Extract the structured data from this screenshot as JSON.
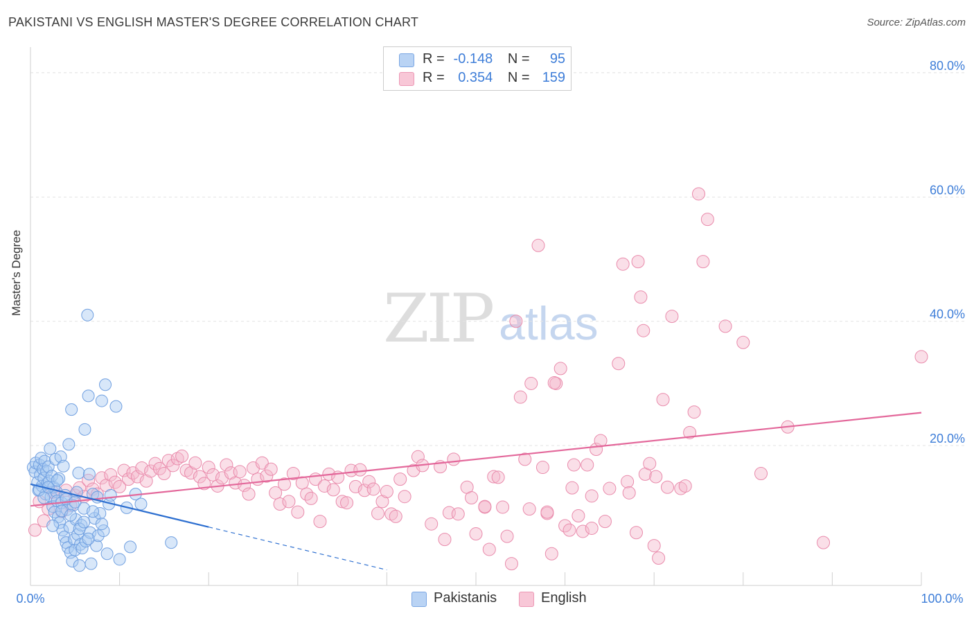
{
  "title": "PAKISTANI VS ENGLISH MASTER'S DEGREE CORRELATION CHART",
  "source": "Source: ZipAtlas.com",
  "watermark": {
    "zip": "ZIP",
    "atlas": "atlas"
  },
  "legend": [
    {
      "r_label": "R =",
      "r_value": "-0.148",
      "n_label": "N =",
      "n_value": "95"
    },
    {
      "r_label": "R =",
      "r_value": "0.354",
      "n_label": "N =",
      "n_value": "159"
    }
  ],
  "bottom_legend": {
    "pakistanis": "Pakistanis",
    "english": "English"
  },
  "colors": {
    "pakistanis_fill": "#a9c9f2",
    "pakistanis_stroke": "#6f9fe0",
    "pakistanis_line": "#2d6fd0",
    "english_fill": "#f5b8cc",
    "english_stroke": "#e98aab",
    "english_line": "#e3679a",
    "tick_label": "#3d7dd8"
  },
  "chart_data": {
    "type": "scatter",
    "title": "PAKISTANI VS ENGLISH MASTER'S DEGREE CORRELATION CHART",
    "xlabel": "",
    "ylabel": "Master's Degree",
    "xlim": [
      0,
      100
    ],
    "ylim": [
      -2.5,
      83
    ],
    "x_tick_labels": [
      "0.0%",
      "100.0%"
    ],
    "y_ticks": [
      20,
      40,
      60,
      80
    ],
    "y_tick_labels": [
      "20.0%",
      "40.0%",
      "60.0%",
      "80.0%"
    ],
    "grid": true,
    "legend_position": "top-center",
    "series": [
      {
        "name": "Pakistanis",
        "trend": {
          "x0": 0,
          "y0": 13.8,
          "x1": 20,
          "y1": 6.9,
          "dashed_to_x": 40
        },
        "points": [
          [
            0.3,
            16.5
          ],
          [
            0.5,
            15.8
          ],
          [
            0.6,
            17.2
          ],
          [
            0.8,
            14.1
          ],
          [
            0.9,
            12.8
          ],
          [
            1.0,
            16.9
          ],
          [
            1.1,
            15.3
          ],
          [
            1.2,
            18.0
          ],
          [
            1.3,
            13.5
          ],
          [
            1.4,
            16.2
          ],
          [
            1.5,
            14.8
          ],
          [
            1.6,
            17.5
          ],
          [
            1.7,
            12.2
          ],
          [
            1.8,
            15.9
          ],
          [
            1.9,
            13.9
          ],
          [
            2.0,
            16.6
          ],
          [
            2.1,
            14.3
          ],
          [
            2.2,
            19.5
          ],
          [
            2.3,
            11.8
          ],
          [
            2.4,
            15.1
          ],
          [
            2.5,
            10.2
          ],
          [
            2.6,
            13.3
          ],
          [
            2.7,
            9.3
          ],
          [
            2.8,
            17.8
          ],
          [
            2.9,
            12.6
          ],
          [
            3.0,
            11.1
          ],
          [
            3.1,
            8.5
          ],
          [
            3.2,
            14.7
          ],
          [
            3.3,
            7.6
          ],
          [
            3.4,
            18.2
          ],
          [
            3.5,
            10.8
          ],
          [
            3.6,
            6.4
          ],
          [
            3.7,
            16.7
          ],
          [
            3.8,
            5.3
          ],
          [
            3.9,
            12.0
          ],
          [
            4.0,
            4.4
          ],
          [
            4.1,
            9.7
          ],
          [
            4.2,
            3.6
          ],
          [
            4.3,
            20.2
          ],
          [
            4.4,
            6.9
          ],
          [
            4.5,
            2.8
          ],
          [
            4.6,
            25.8
          ],
          [
            4.7,
            1.4
          ],
          [
            4.8,
            10.4
          ],
          [
            4.9,
            4.9
          ],
          [
            5.0,
            3.2
          ],
          [
            5.1,
            8.1
          ],
          [
            5.2,
            12.5
          ],
          [
            5.3,
            5.7
          ],
          [
            5.4,
            15.6
          ],
          [
            5.5,
            0.7
          ],
          [
            5.6,
            4.1
          ],
          [
            5.7,
            7.2
          ],
          [
            5.8,
            3.5
          ],
          [
            6.0,
            9.9
          ],
          [
            6.1,
            22.6
          ],
          [
            6.2,
            4.6
          ],
          [
            6.4,
            41.0
          ],
          [
            6.5,
            28.0
          ],
          [
            6.6,
            15.4
          ],
          [
            6.7,
            6.0
          ],
          [
            6.8,
            1.0
          ],
          [
            7.0,
            12.2
          ],
          [
            7.2,
            8.3
          ],
          [
            7.4,
            3.9
          ],
          [
            7.6,
            5.5
          ],
          [
            7.8,
            9.1
          ],
          [
            8.0,
            27.2
          ],
          [
            8.2,
            6.3
          ],
          [
            8.4,
            29.8
          ],
          [
            8.6,
            2.6
          ],
          [
            8.8,
            10.6
          ],
          [
            9.0,
            12.0
          ],
          [
            9.6,
            26.3
          ],
          [
            10.0,
            1.7
          ],
          [
            10.8,
            10.0
          ],
          [
            11.2,
            3.7
          ],
          [
            11.8,
            12.2
          ],
          [
            12.4,
            10.6
          ],
          [
            15.8,
            4.4
          ],
          [
            1.0,
            12.9
          ],
          [
            1.5,
            11.6
          ],
          [
            2.0,
            13.3
          ],
          [
            2.5,
            7.1
          ],
          [
            3.0,
            14.4
          ],
          [
            3.5,
            9.5
          ],
          [
            4.0,
            11.4
          ],
          [
            4.5,
            8.8
          ],
          [
            5.0,
            10.9
          ],
          [
            5.5,
            6.6
          ],
          [
            6.0,
            7.7
          ],
          [
            6.5,
            5.0
          ],
          [
            7.0,
            9.4
          ],
          [
            7.5,
            11.7
          ],
          [
            8.0,
            7.4
          ]
        ]
      },
      {
        "name": "English",
        "trend": {
          "x0": 0,
          "y0": 10.3,
          "x1": 100,
          "y1": 25.3
        },
        "points": [
          [
            0.5,
            6.4
          ],
          [
            1.0,
            11.0
          ],
          [
            1.5,
            7.9
          ],
          [
            2.0,
            9.8
          ],
          [
            2.5,
            12.5
          ],
          [
            3.0,
            11.6
          ],
          [
            3.5,
            9.4
          ],
          [
            4.0,
            12.8
          ],
          [
            4.5,
            10.4
          ],
          [
            5.0,
            12.0
          ],
          [
            5.5,
            13.2
          ],
          [
            6.0,
            11.8
          ],
          [
            6.5,
            14.4
          ],
          [
            7.0,
            13.0
          ],
          [
            7.5,
            12.2
          ],
          [
            8.0,
            14.8
          ],
          [
            8.5,
            13.6
          ],
          [
            9.0,
            15.3
          ],
          [
            9.5,
            14.1
          ],
          [
            10.0,
            13.4
          ],
          [
            10.5,
            16.0
          ],
          [
            11.0,
            14.6
          ],
          [
            11.5,
            15.6
          ],
          [
            12.0,
            15.0
          ],
          [
            12.5,
            16.4
          ],
          [
            13.0,
            14.3
          ],
          [
            13.5,
            15.9
          ],
          [
            14.0,
            17.1
          ],
          [
            14.5,
            16.3
          ],
          [
            15.0,
            15.5
          ],
          [
            15.5,
            17.6
          ],
          [
            16.0,
            16.8
          ],
          [
            16.5,
            17.9
          ],
          [
            17.0,
            18.3
          ],
          [
            17.5,
            16.0
          ],
          [
            18.0,
            15.6
          ],
          [
            18.5,
            17.2
          ],
          [
            19.0,
            15.0
          ],
          [
            19.5,
            13.9
          ],
          [
            20.0,
            16.5
          ],
          [
            20.5,
            15.3
          ],
          [
            21.0,
            13.5
          ],
          [
            21.5,
            14.8
          ],
          [
            22.0,
            16.9
          ],
          [
            22.5,
            15.6
          ],
          [
            23.0,
            14.0
          ],
          [
            23.5,
            15.8
          ],
          [
            24.0,
            13.6
          ],
          [
            24.5,
            12.2
          ],
          [
            25.0,
            16.4
          ],
          [
            25.5,
            14.6
          ],
          [
            26.0,
            17.2
          ],
          [
            26.5,
            15.1
          ],
          [
            27.0,
            16.2
          ],
          [
            27.5,
            12.4
          ],
          [
            28.0,
            10.6
          ],
          [
            28.5,
            13.8
          ],
          [
            29.0,
            11.0
          ],
          [
            29.5,
            15.5
          ],
          [
            30.0,
            9.3
          ],
          [
            30.5,
            14.0
          ],
          [
            31.0,
            12.2
          ],
          [
            31.5,
            11.5
          ],
          [
            32.0,
            14.6
          ],
          [
            32.5,
            7.8
          ],
          [
            33.0,
            13.5
          ],
          [
            33.5,
            15.4
          ],
          [
            34.0,
            12.9
          ],
          [
            34.5,
            14.9
          ],
          [
            35.0,
            11.0
          ],
          [
            35.5,
            10.8
          ],
          [
            36.0,
            16.0
          ],
          [
            36.5,
            13.4
          ],
          [
            37.0,
            16.1
          ],
          [
            37.5,
            12.8
          ],
          [
            38.0,
            14.2
          ],
          [
            38.5,
            13.0
          ],
          [
            39.0,
            9.1
          ],
          [
            39.5,
            11.0
          ],
          [
            40.0,
            12.6
          ],
          [
            40.5,
            9.0
          ],
          [
            41.0,
            8.6
          ],
          [
            41.5,
            14.6
          ],
          [
            42.0,
            11.8
          ],
          [
            43.0,
            16.0
          ],
          [
            43.5,
            18.2
          ],
          [
            44.0,
            16.8
          ],
          [
            45.0,
            7.4
          ],
          [
            46.0,
            16.6
          ],
          [
            46.5,
            4.9
          ],
          [
            47.0,
            9.2
          ],
          [
            47.5,
            17.8
          ],
          [
            48.0,
            9.0
          ],
          [
            49.0,
            13.3
          ],
          [
            49.5,
            11.6
          ],
          [
            50.0,
            5.8
          ],
          [
            51.0,
            10.1
          ],
          [
            51.5,
            3.3
          ],
          [
            52.0,
            15.0
          ],
          [
            53.0,
            10.1
          ],
          [
            53.5,
            5.4
          ],
          [
            54.0,
            1.0
          ],
          [
            55.0,
            27.8
          ],
          [
            55.5,
            17.8
          ],
          [
            56.0,
            9.8
          ],
          [
            57.0,
            52.2
          ],
          [
            57.5,
            16.5
          ],
          [
            58.0,
            9.1
          ],
          [
            58.5,
            2.6
          ],
          [
            59.0,
            30.0
          ],
          [
            59.5,
            32.4
          ],
          [
            60.0,
            7.1
          ],
          [
            60.5,
            6.4
          ],
          [
            61.0,
            16.9
          ],
          [
            61.5,
            8.7
          ],
          [
            62.0,
            6.2
          ],
          [
            63.0,
            11.9
          ],
          [
            63.5,
            19.4
          ],
          [
            64.0,
            20.8
          ],
          [
            64.5,
            7.8
          ],
          [
            66.0,
            33.2
          ],
          [
            67.0,
            14.2
          ],
          [
            68.0,
            6.0
          ],
          [
            68.5,
            43.9
          ],
          [
            69.0,
            15.4
          ],
          [
            69.5,
            17.1
          ],
          [
            70.0,
            3.9
          ],
          [
            70.5,
            1.9
          ],
          [
            71.0,
            27.4
          ],
          [
            72.0,
            40.8
          ],
          [
            73.0,
            13.1
          ],
          [
            74.0,
            22.1
          ],
          [
            75.0,
            60.5
          ],
          [
            76.0,
            56.4
          ],
          [
            78.0,
            39.2
          ],
          [
            80.0,
            36.6
          ],
          [
            82.0,
            15.5
          ],
          [
            85.0,
            23.0
          ],
          [
            89.0,
            4.4
          ],
          [
            100.0,
            34.3
          ],
          [
            66.5,
            49.2
          ],
          [
            68.2,
            49.6
          ],
          [
            68.8,
            38.5
          ],
          [
            54.5,
            40.0
          ],
          [
            56.2,
            30.0
          ],
          [
            58.8,
            30.1
          ],
          [
            60.8,
            13.2
          ],
          [
            62.5,
            16.9
          ],
          [
            65.0,
            13.1
          ],
          [
            67.2,
            12.4
          ],
          [
            70.2,
            15.0
          ],
          [
            71.5,
            13.3
          ],
          [
            73.5,
            13.5
          ],
          [
            75.5,
            49.6
          ],
          [
            74.5,
            25.4
          ],
          [
            51.0,
            10.2
          ],
          [
            52.5,
            14.9
          ],
          [
            58.0,
            9.3
          ],
          [
            63.0,
            6.7
          ]
        ]
      }
    ]
  }
}
